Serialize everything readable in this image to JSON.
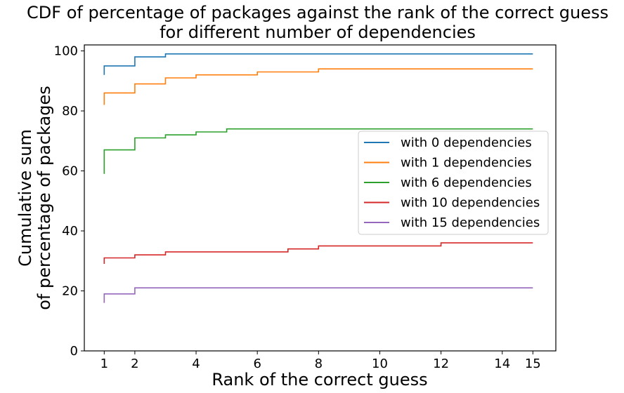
{
  "chart_data": {
    "type": "line",
    "step": "post",
    "title_lines": [
      "CDF of percentage of packages against the rank of the correct guess",
      "for different number of dependencies"
    ],
    "xlabel": "Rank of the correct guess",
    "ylabel_lines": [
      "Cumulative sum",
      "of percentage of packages"
    ],
    "xlim": [
      0.35,
      15.75
    ],
    "ylim": [
      0,
      102
    ],
    "xticks": [
      1,
      2,
      4,
      6,
      8,
      10,
      12,
      14,
      15
    ],
    "yticks": [
      0,
      20,
      40,
      60,
      80,
      100
    ],
    "grid": false,
    "legend_position": "center-right",
    "series": [
      {
        "name": "with 0 dependencies",
        "color": "#1f77b4",
        "points": [
          [
            1,
            92
          ],
          [
            1,
            95
          ],
          [
            2,
            95
          ],
          [
            2,
            98
          ],
          [
            3,
            98
          ],
          [
            3,
            99
          ],
          [
            15,
            99
          ]
        ]
      },
      {
        "name": "with 1 dependencies",
        "color": "#ff7f0e",
        "points": [
          [
            1,
            82
          ],
          [
            1,
            86
          ],
          [
            2,
            86
          ],
          [
            2,
            89
          ],
          [
            3,
            89
          ],
          [
            3,
            91
          ],
          [
            4,
            91
          ],
          [
            4,
            92
          ],
          [
            6,
            92
          ],
          [
            6,
            93
          ],
          [
            8,
            93
          ],
          [
            8,
            94
          ],
          [
            15,
            94
          ]
        ]
      },
      {
        "name": "with 6 dependencies",
        "color": "#2ca02c",
        "points": [
          [
            1,
            59
          ],
          [
            1,
            67
          ],
          [
            2,
            67
          ],
          [
            2,
            71
          ],
          [
            3,
            71
          ],
          [
            3,
            72
          ],
          [
            4,
            72
          ],
          [
            4,
            73
          ],
          [
            5,
            73
          ],
          [
            5,
            74
          ],
          [
            15,
            74
          ]
        ]
      },
      {
        "name": "with 10 dependencies",
        "color": "#d62728",
        "points": [
          [
            1,
            29
          ],
          [
            1,
            31
          ],
          [
            2,
            31
          ],
          [
            2,
            32
          ],
          [
            3,
            32
          ],
          [
            3,
            33
          ],
          [
            7,
            33
          ],
          [
            7,
            34
          ],
          [
            8,
            34
          ],
          [
            8,
            35
          ],
          [
            12,
            35
          ],
          [
            12,
            36
          ],
          [
            15,
            36
          ]
        ]
      },
      {
        "name": "with 15 dependencies",
        "color": "#9467bd",
        "points": [
          [
            1,
            16
          ],
          [
            1,
            19
          ],
          [
            2,
            19
          ],
          [
            2,
            21
          ],
          [
            15,
            21
          ]
        ]
      }
    ]
  }
}
